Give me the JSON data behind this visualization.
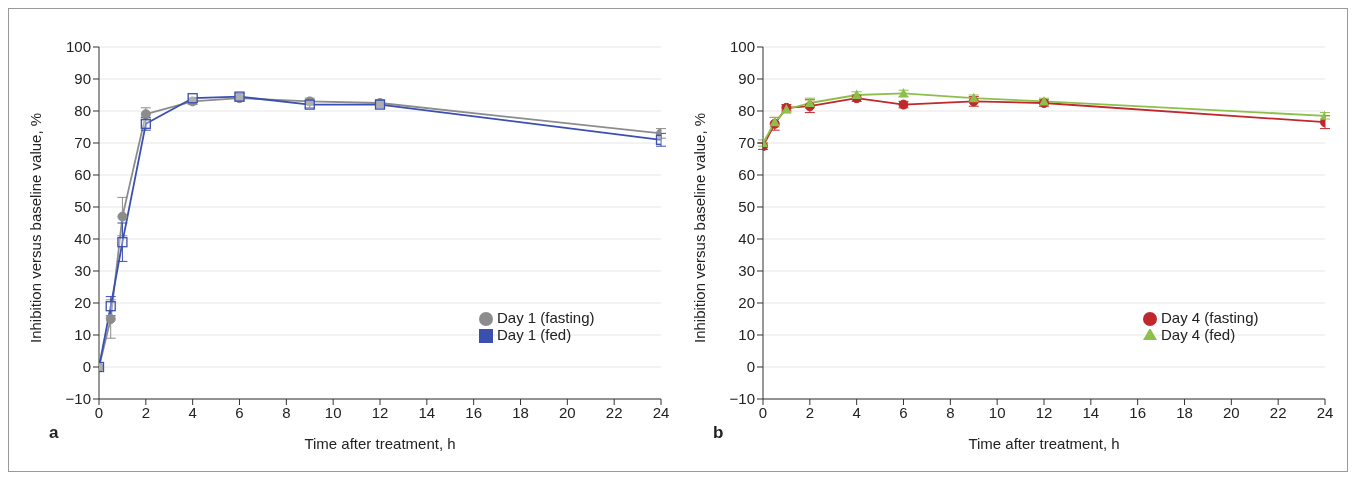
{
  "chart_data": [
    {
      "type": "line",
      "xlabel": "Time after treatment, h",
      "ylabel": "Inhibition versus baseline value, %",
      "annotations": [
        "a"
      ],
      "x": [
        0,
        0.5,
        1,
        2,
        4,
        6,
        9,
        12,
        24
      ],
      "xlim": [
        0,
        24
      ],
      "xticks": [
        0,
        2,
        4,
        6,
        8,
        10,
        12,
        14,
        16,
        18,
        20,
        22,
        24
      ],
      "ylim": [
        -10,
        100
      ],
      "yticks": [
        -10,
        0,
        10,
        20,
        30,
        40,
        50,
        60,
        70,
        80,
        90,
        100
      ],
      "grid": "y",
      "legend": "bottom right",
      "series": [
        {
          "name": "Day 1 (fasting)",
          "color": "#8c8c8c",
          "marker": "circle",
          "values": [
            0,
            15,
            47,
            79,
            83,
            84,
            83,
            82.5,
            73
          ],
          "errors": [
            null,
            6,
            6,
            2,
            1,
            1,
            1,
            1,
            1.5
          ]
        },
        {
          "name": "Day 1 (fed)",
          "color": "#3a4fb0",
          "marker": "square",
          "values": [
            0,
            19,
            39,
            76,
            84,
            84.5,
            82,
            82,
            71
          ],
          "errors": [
            null,
            3,
            6,
            2,
            null,
            1,
            1,
            1,
            2
          ]
        }
      ]
    },
    {
      "type": "line",
      "xlabel": "Time after treatment, h",
      "ylabel": "Inhibition versus baseline value, %",
      "annotations": [
        "b"
      ],
      "x": [
        0,
        0.5,
        1,
        2,
        4,
        6,
        9,
        12,
        24
      ],
      "xlim": [
        0,
        24
      ],
      "xticks": [
        0,
        2,
        4,
        6,
        8,
        10,
        12,
        14,
        16,
        18,
        20,
        22,
        24
      ],
      "ylim": [
        -10,
        100
      ],
      "yticks": [
        -10,
        0,
        10,
        20,
        30,
        40,
        50,
        60,
        70,
        80,
        90,
        100
      ],
      "grid": "y",
      "legend": "bottom right",
      "series": [
        {
          "name": "Day 4 (fasting)",
          "color": "#c0282d",
          "marker": "circle",
          "values": [
            69,
            76,
            81,
            81.5,
            84,
            82,
            83,
            82.5,
            76.5
          ],
          "errors": [
            1,
            2,
            1,
            2,
            1,
            1,
            1.5,
            1,
            2
          ]
        },
        {
          "name": "Day 4 (fed)",
          "color": "#8dc04a",
          "marker": "triangle",
          "values": [
            70,
            76.5,
            80.5,
            82.5,
            85,
            85.5,
            84,
            83,
            78.5
          ],
          "errors": [
            1,
            1.5,
            1,
            1.5,
            1,
            1,
            1,
            1,
            1
          ]
        }
      ]
    }
  ]
}
